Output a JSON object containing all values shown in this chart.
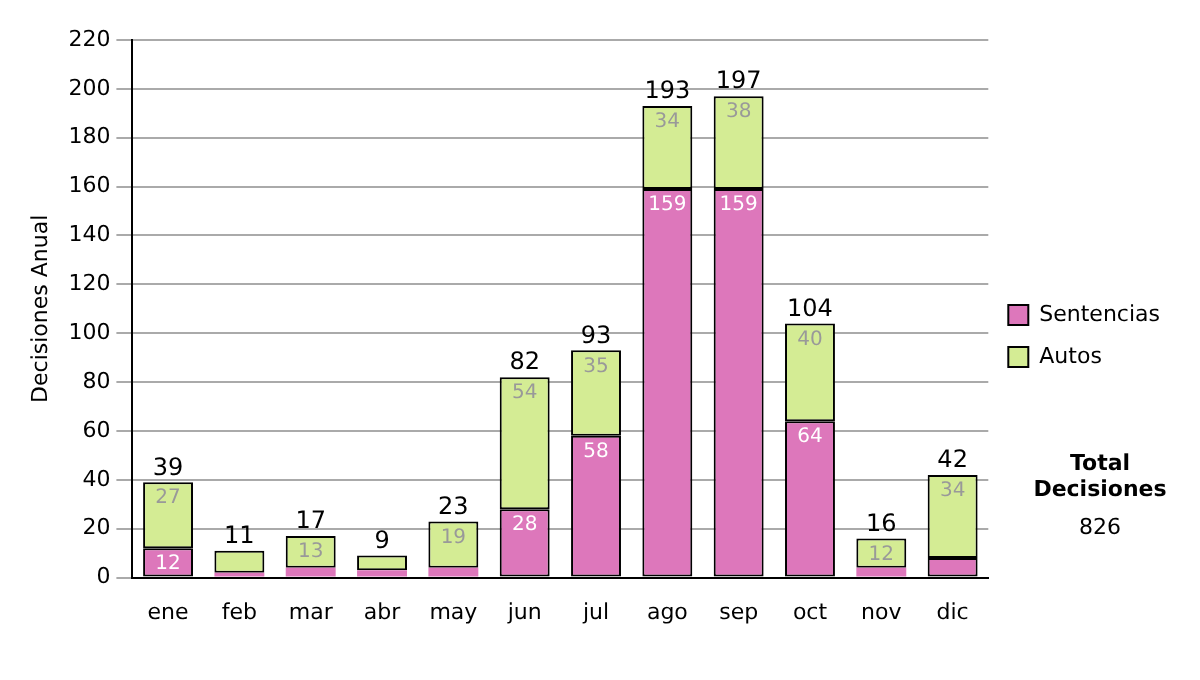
{
  "chart_data": {
    "type": "bar",
    "stacked": true,
    "ylabel": "Decisiones Anual",
    "categories": [
      "ene",
      "feb",
      "mar",
      "abr",
      "may",
      "jun",
      "jul",
      "ago",
      "sep",
      "oct",
      "nov",
      "dic"
    ],
    "series": [
      {
        "name": "Sentencias",
        "color": "#dd77bb",
        "values": [
          12,
          2,
          4,
          3,
          4,
          28,
          58,
          159,
          159,
          64,
          4,
          8
        ],
        "value_labels": [
          "12",
          null,
          null,
          null,
          null,
          "28",
          "58",
          "159",
          "159",
          "64",
          null,
          null
        ]
      },
      {
        "name": "Autos",
        "color": "#d4ec94",
        "values": [
          27,
          9,
          13,
          6,
          19,
          54,
          35,
          34,
          38,
          40,
          12,
          34
        ],
        "value_labels": [
          "27",
          null,
          "13",
          null,
          "19",
          "54",
          "35",
          "34",
          "38",
          "40",
          "12",
          "34"
        ]
      }
    ],
    "totals": [
      "39",
      "11",
      "17",
      "9",
      "23",
      "82",
      "93",
      "193",
      "197",
      "104",
      "16",
      "42"
    ],
    "ylim": [
      0,
      220
    ],
    "yticks": [
      0,
      20,
      40,
      60,
      80,
      100,
      120,
      140,
      160,
      180,
      200,
      220
    ],
    "grid": "y",
    "legend": "right",
    "annotations": [
      "Total Decisiones",
      "826"
    ]
  }
}
